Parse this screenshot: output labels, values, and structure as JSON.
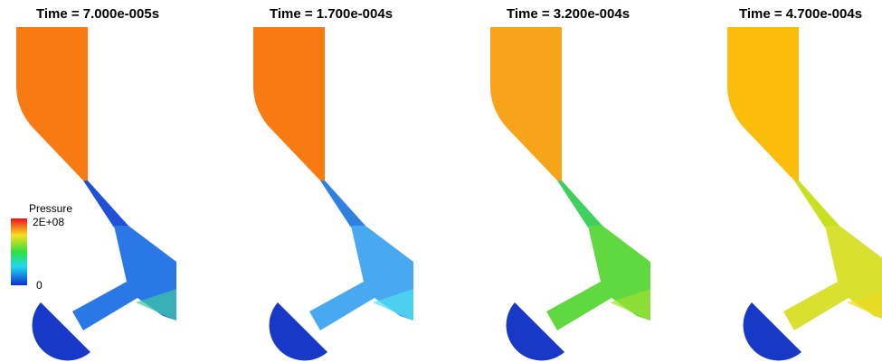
{
  "panels": [
    {
      "title": "Time = 7.000e-005s"
    },
    {
      "title": "Time = 1.700e-004s"
    },
    {
      "title": "Time = 3.200e-004s"
    },
    {
      "title": "Time = 4.700e-004s"
    }
  ],
  "legend": {
    "title": "Pressure",
    "max_label": "2E+08",
    "min_label": "0"
  }
}
